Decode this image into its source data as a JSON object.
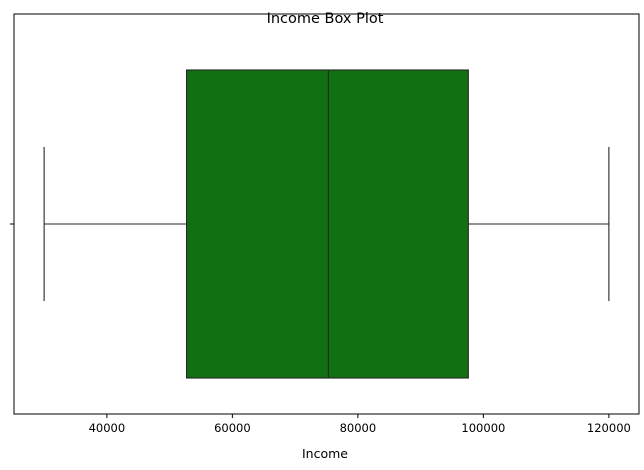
{
  "chart_data": {
    "type": "box",
    "title": "Income Box Plot",
    "xlabel": "Income",
    "ylabel": "",
    "xlim": [
      25200,
      124800
    ],
    "xticks": [
      40000,
      60000,
      80000,
      100000,
      120000
    ],
    "xtick_labels": [
      "40000",
      "60000",
      "80000",
      "100000",
      "120000"
    ],
    "grid": false,
    "orientation": "horizontal",
    "box": {
      "min": 30000,
      "q1": 52700,
      "median": 75300,
      "q3": 97600,
      "max": 120000
    },
    "colors": {
      "box_fill": "#117011",
      "line": "#262626",
      "axis": "#000000"
    }
  }
}
